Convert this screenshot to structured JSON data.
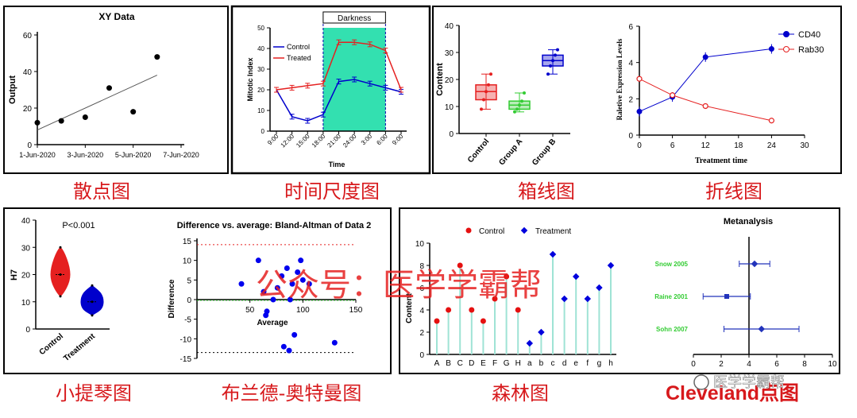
{
  "colors": {
    "caption": "#d7191c",
    "blue": "#0000cc",
    "red": "#e52020",
    "green": "#33cc33",
    "teal": "#33e0b0",
    "forest_line": "#9fe3d5",
    "cleveland_label": "#33cc33"
  },
  "captions": {
    "scatter": "散点图",
    "timescale": "时间尺度图",
    "boxplot": "箱线图",
    "line": "折线图",
    "violin": "小提琴图",
    "bland": "布兰德-奥特曼图",
    "forest": "森林图",
    "cleveland": "Cleveland点图"
  },
  "watermark": {
    "main": "公众号：医学学霸帮",
    "badge": "医学学霸帮"
  },
  "chart_data": [
    {
      "id": "scatter",
      "type": "scatter",
      "title": "XY Data",
      "xlabel": "",
      "ylabel": "Output",
      "xticks": [
        "1-Jun-2020",
        "3-Jun-2020",
        "5-Jun-2020",
        "7-Jun-2020"
      ],
      "yticks": [
        "0",
        "20",
        "40",
        "60"
      ],
      "ylim": [
        0,
        60
      ],
      "points": [
        {
          "day": 1,
          "y": 12
        },
        {
          "day": 2,
          "y": 13
        },
        {
          "day": 3,
          "y": 15
        },
        {
          "day": 4,
          "y": 31
        },
        {
          "day": 5,
          "y": 18
        },
        {
          "day": 6,
          "y": 48
        }
      ],
      "trendline": [
        {
          "day": 1,
          "y": 8
        },
        {
          "day": 6,
          "y": 38
        }
      ]
    },
    {
      "id": "timescale",
      "type": "line",
      "xlabel": "Time",
      "ylabel": "Mitotic Index",
      "band_label": "Darkness",
      "categories": [
        "9:00",
        "12:00",
        "15:00",
        "18:00",
        "21:00",
        "24:00",
        "3:00",
        "6:00",
        "9:00"
      ],
      "yticks": [
        "0",
        "10",
        "20",
        "30",
        "40",
        "50"
      ],
      "ylim": [
        0,
        50
      ],
      "band": [
        3,
        7
      ],
      "series": [
        {
          "name": "Control",
          "color": "#0000cc",
          "values": [
            20,
            7,
            5,
            8,
            24,
            25,
            23,
            21,
            19
          ]
        },
        {
          "name": "Treated",
          "color": "#e52020",
          "values": [
            20,
            21,
            22,
            23,
            43,
            43,
            42,
            39,
            20
          ]
        }
      ]
    },
    {
      "id": "boxplot",
      "type": "box",
      "ylabel": "Content",
      "yticks": [
        "0",
        "10",
        "20",
        "30",
        "40"
      ],
      "ylim": [
        0,
        40
      ],
      "groups": [
        {
          "name": "Control",
          "color": "#e52020",
          "min": 9,
          "q1": 12.5,
          "median": 15.5,
          "q3": 18,
          "max": 22
        },
        {
          "name": "Group A",
          "color": "#33cc33",
          "min": 8,
          "q1": 9,
          "median": 10.5,
          "q3": 12,
          "max": 15
        },
        {
          "name": "Group B",
          "color": "#0000cc",
          "min": 22,
          "q1": 25,
          "median": 27,
          "q3": 29,
          "max": 31
        }
      ]
    },
    {
      "id": "line",
      "type": "line",
      "xlabel": "Treatment time",
      "ylabel": "Raletive Expression Levels",
      "x": [
        0,
        6,
        12,
        24
      ],
      "xticks": [
        "0",
        "6",
        "12",
        "18",
        "24",
        "30"
      ],
      "yticks": [
        "0",
        "2",
        "4",
        "6"
      ],
      "xlim": [
        0,
        30
      ],
      "ylim": [
        0,
        6
      ],
      "series": [
        {
          "name": "CD40",
          "color": "#0000cc",
          "values": [
            1.3,
            2.1,
            4.3,
            4.75
          ]
        },
        {
          "name": "Rab30",
          "color": "#e52020",
          "values": [
            3.1,
            2.2,
            1.6,
            0.8
          ]
        }
      ]
    },
    {
      "id": "violin",
      "type": "violin",
      "ylabel": "H7",
      "annotation": "P<0.001",
      "yticks": [
        "0",
        "10",
        "20",
        "30",
        "40"
      ],
      "ylim": [
        0,
        40
      ],
      "groups": [
        {
          "name": "Control",
          "color": "#e52020",
          "min": 12,
          "median": 20,
          "max": 30
        },
        {
          "name": "Treatment",
          "color": "#0000cc",
          "min": 5,
          "median": 10,
          "max": 16
        }
      ]
    },
    {
      "id": "bland",
      "type": "scatter",
      "title": "Difference vs. average: Bland-Altman of Data 2",
      "xlabel": "Average",
      "ylabel": "Difference",
      "xticks": [
        "50",
        "100",
        "150"
      ],
      "yticks": [
        "-15",
        "-10",
        "-5",
        "0",
        "5",
        "10",
        "15"
      ],
      "xlim": [
        0,
        150
      ],
      "ylim": [
        -15,
        15
      ],
      "upper_loa": 14,
      "lower_loa": -13.5,
      "points": [
        [
          42,
          4
        ],
        [
          58,
          10
        ],
        [
          63,
          2
        ],
        [
          65,
          -4
        ],
        [
          66,
          -3
        ],
        [
          72,
          0
        ],
        [
          76,
          3
        ],
        [
          80,
          6
        ],
        [
          82,
          -12
        ],
        [
          85,
          8
        ],
        [
          87,
          -13
        ],
        [
          88,
          0
        ],
        [
          90,
          4
        ],
        [
          92,
          -9
        ],
        [
          95,
          7
        ],
        [
          98,
          10
        ],
        [
          100,
          5
        ],
        [
          106,
          4
        ],
        [
          130,
          -11
        ]
      ]
    },
    {
      "id": "forest",
      "type": "lollipop",
      "xlabel": "",
      "ylabel": "Content",
      "legend": [
        "Control",
        "Treatment"
      ],
      "categories": [
        "A",
        "B",
        "C",
        "D",
        "E",
        "F",
        "G",
        "H",
        "a",
        "b",
        "c",
        "d",
        "e",
        "f",
        "g",
        "h"
      ],
      "yticks": [
        "0",
        "2",
        "4",
        "6",
        "8",
        "10"
      ],
      "ylim": [
        0,
        10
      ],
      "values": [
        3,
        4,
        8,
        4,
        3,
        5,
        7,
        4,
        1,
        2,
        9,
        5,
        7,
        5,
        6,
        8
      ],
      "groups": [
        "Control",
        "Control",
        "Control",
        "Control",
        "Control",
        "Control",
        "Control",
        "Control",
        "Treatment",
        "Treatment",
        "Treatment",
        "Treatment",
        "Treatment",
        "Treatment",
        "Treatment",
        "Treatment"
      ]
    },
    {
      "id": "cleveland",
      "type": "forest",
      "title": "Metanalysis",
      "xticks": [
        "0",
        "2",
        "4",
        "6",
        "8",
        "10"
      ],
      "xlim": [
        0,
        10
      ],
      "reference": 4,
      "studies": [
        {
          "name": "Snow 2005",
          "est": 4.4,
          "low": 3.3,
          "high": 5.5
        },
        {
          "name": "Raine  2001",
          "est": 2.4,
          "low": 0.7,
          "high": 4.1
        },
        {
          "name": "Sohn 2007",
          "est": 4.9,
          "low": 2.2,
          "high": 7.6
        }
      ]
    }
  ]
}
